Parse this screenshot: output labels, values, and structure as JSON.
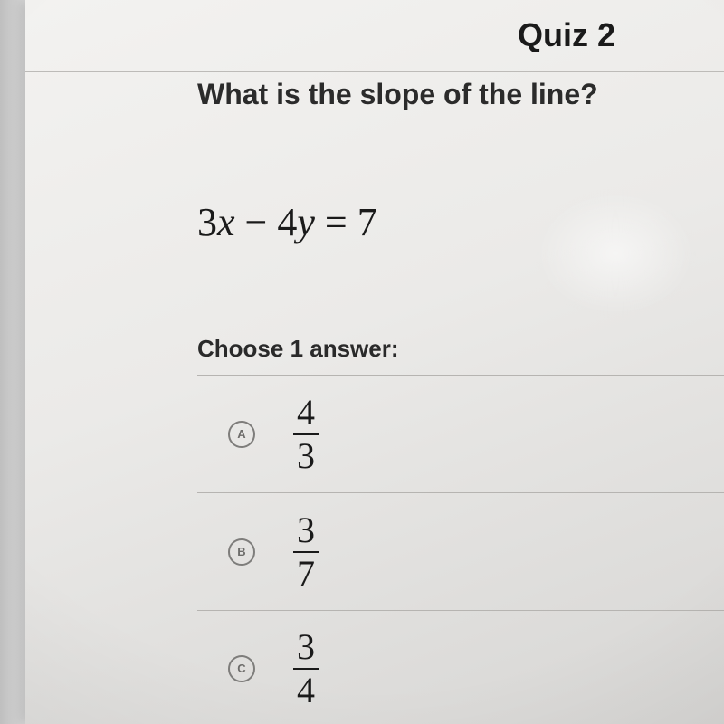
{
  "header": {
    "title": "Quiz 2"
  },
  "question": {
    "text": "What is the slope of the line?"
  },
  "equation": {
    "coef1": "3",
    "var1": "x",
    "op": "−",
    "coef2": "4",
    "var2": "y",
    "eq": "=",
    "rhs": "7"
  },
  "prompt": {
    "text": "Choose 1 answer:"
  },
  "answers": [
    {
      "letter": "A",
      "numerator": "4",
      "denominator": "3"
    },
    {
      "letter": "B",
      "numerator": "3",
      "denominator": "7"
    },
    {
      "letter": "C",
      "numerator": "3",
      "denominator": "4"
    }
  ],
  "style": {
    "page_bg_top": "#f3f2f0",
    "page_bg_bottom": "#d7d6d4",
    "divider_color": "#bdbbb8",
    "answer_border_color": "#b6b4b1",
    "radio_border_color": "#7e7d7b",
    "text_color": "#1a1a1a",
    "header_fontsize": 36,
    "question_fontsize": 32,
    "equation_fontsize": 44,
    "prompt_fontsize": 26,
    "fraction_fontsize": 40,
    "answer_row_height": 130
  }
}
